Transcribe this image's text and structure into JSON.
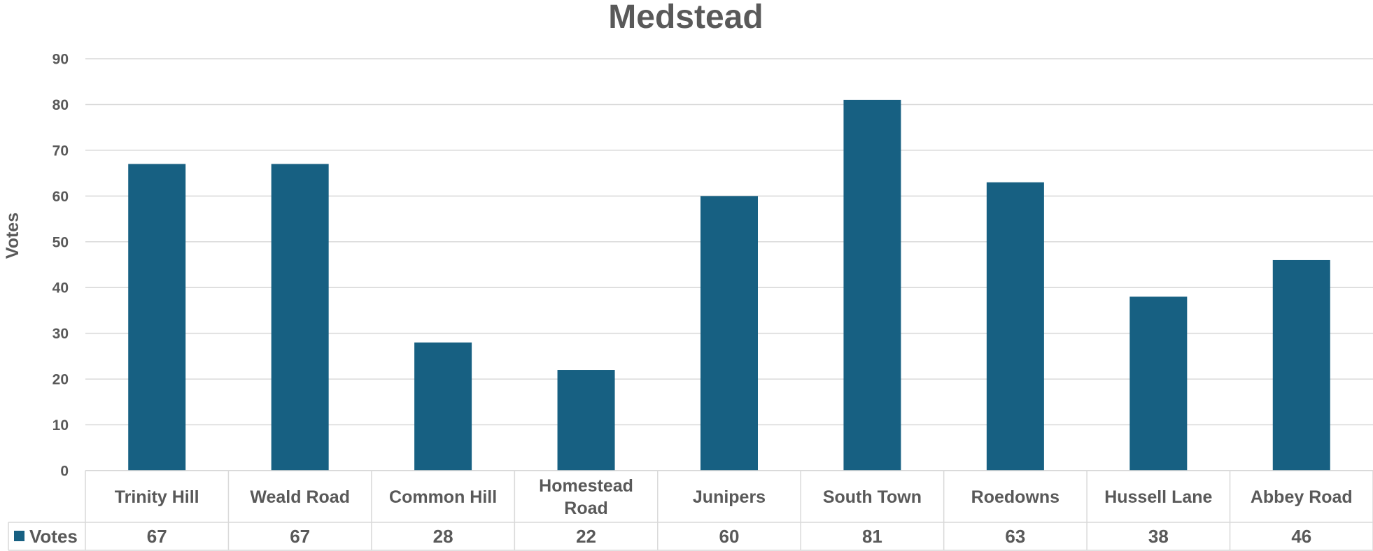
{
  "chart_data": {
    "type": "bar",
    "title": "Medstead",
    "xlabel": "",
    "ylabel": "Votes",
    "ylim": [
      0,
      90
    ],
    "yticks": [
      0,
      10,
      20,
      30,
      40,
      50,
      60,
      70,
      80,
      90
    ],
    "grid": true,
    "categories": [
      "Trinity Hill",
      "Weald Road",
      "Common Hill",
      "Homestead Road",
      "Junipers",
      "South Town",
      "Roedowns",
      "Hussell Lane",
      "Abbey Road"
    ],
    "category_lines": [
      [
        "Trinity Hill"
      ],
      [
        "Weald Road"
      ],
      [
        "Common Hill"
      ],
      [
        "Homestead",
        "Road"
      ],
      [
        "Junipers"
      ],
      [
        "South Town"
      ],
      [
        "Roedowns"
      ],
      [
        "Hussell Lane"
      ],
      [
        "Abbey Road"
      ]
    ],
    "series": [
      {
        "name": "Votes",
        "color": "#176082",
        "values": [
          67,
          67,
          28,
          22,
          60,
          81,
          63,
          38,
          46
        ]
      }
    ],
    "data_table": true,
    "legend_placement": "data-table-left"
  }
}
